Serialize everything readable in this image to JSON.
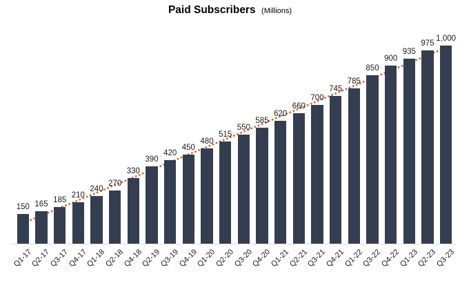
{
  "chart_data": {
    "type": "bar",
    "title": "Paid Subscribers",
    "subtitle": "(Millions)",
    "categories": [
      "Q1-17",
      "Q2-17",
      "Q3-17",
      "Q4-17",
      "Q1-18",
      "Q2-18",
      "Q4-18",
      "Q2-19",
      "Q3-19",
      "Q4-19",
      "Q1-20",
      "Q2-20",
      "Q3-20",
      "Q4-20",
      "Q1-21",
      "Q2-21",
      "Q3-21",
      "Q4-21",
      "Q1-22",
      "Q3-22",
      "Q4-22",
      "Q1-23",
      "Q2-23",
      "Q3-23"
    ],
    "values": [
      150,
      165,
      185,
      210,
      240,
      270,
      330,
      390,
      420,
      450,
      480,
      515,
      550,
      585,
      620,
      660,
      700,
      745,
      785,
      850,
      900,
      935,
      975,
      1000
    ],
    "value_labels": [
      "150",
      "165",
      "185",
      "210",
      "240",
      "270",
      "330",
      "390",
      "420",
      "450",
      "480",
      "515",
      "550",
      "585",
      "620",
      "660",
      "700",
      "745",
      "785",
      "850",
      "900",
      "935",
      "975",
      "1,000"
    ],
    "xlabel": "",
    "ylabel": "",
    "ylim": [
      0,
      1000
    ],
    "grid": false,
    "legend_position": "none",
    "trendline": {
      "type": "linear",
      "style": "dotted"
    },
    "colors": {
      "bar": "#333f50",
      "trendline": "#d46428",
      "axis_line": "#d9d9d9",
      "value_label_text": "#1a1a1a",
      "axis_label_text": "#1a1a1a",
      "title_text": "#000000",
      "background": "#ffffff"
    }
  }
}
